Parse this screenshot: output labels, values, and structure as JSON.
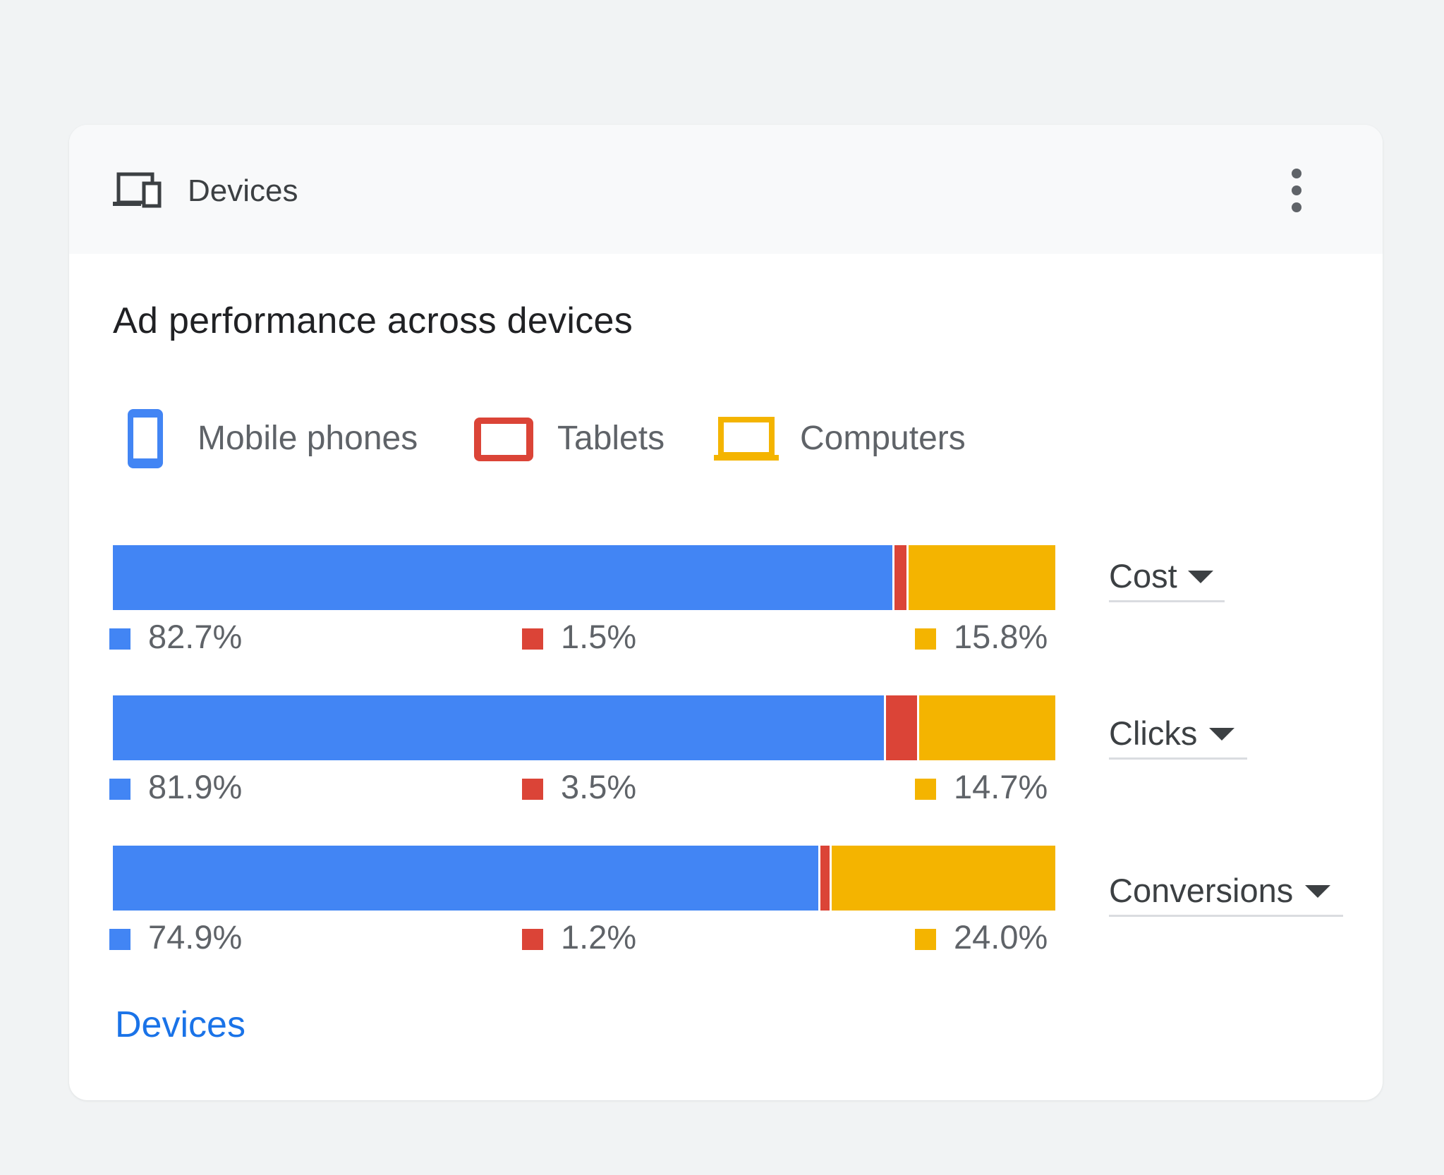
{
  "header": {
    "title": "Devices",
    "icon": "devices-icon",
    "more_icon": "more-vert-icon"
  },
  "card_title": "Ad performance across devices",
  "legend": [
    {
      "label": "Mobile phones",
      "icon": "phone-icon",
      "color": "#4285f4"
    },
    {
      "label": "Tablets",
      "icon": "tablet-icon",
      "color": "#db4437"
    },
    {
      "label": "Computers",
      "icon": "laptop-icon",
      "color": "#f4b400"
    }
  ],
  "colors": {
    "mobile": "#4285f4",
    "tablet": "#db4437",
    "computer": "#f4b400"
  },
  "chart_data": {
    "type": "bar",
    "stacked": true,
    "orientation": "horizontal",
    "categories": [
      "Cost",
      "Clicks",
      "Conversions"
    ],
    "series": [
      {
        "name": "Mobile phones",
        "values": [
          82.7,
          81.9,
          74.9
        ],
        "labels": [
          "82.7%",
          "81.9%",
          "74.9%"
        ]
      },
      {
        "name": "Tablets",
        "values": [
          1.5,
          3.5,
          1.2
        ],
        "labels": [
          "1.5%",
          "3.5%",
          "1.2%"
        ]
      },
      {
        "name": "Computers",
        "values": [
          15.8,
          14.7,
          24.0
        ],
        "labels": [
          "15.8%",
          "14.7%",
          "24.0%"
        ]
      }
    ]
  },
  "metrics": [
    {
      "label": "Cost"
    },
    {
      "label": "Clicks"
    },
    {
      "label": "Conversions"
    }
  ],
  "footer_link": "Devices"
}
